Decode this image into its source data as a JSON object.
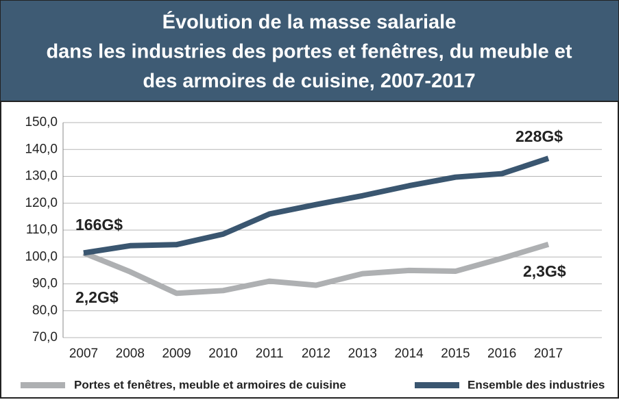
{
  "chart_data": {
    "type": "line",
    "title": [
      "Évolution de la masse salariale",
      "dans les industries des portes et fenêtres, du meuble et",
      "des armoires de cuisine, 2007-2017"
    ],
    "categories": [
      "2007",
      "2008",
      "2009",
      "2010",
      "2011",
      "2012",
      "2013",
      "2014",
      "2015",
      "2016",
      "2017"
    ],
    "series": [
      {
        "name": "Portes et fenêtres, meuble et armoires de cuisine",
        "color": "#aeb0b2",
        "values": [
          101.5,
          94.5,
          86.5,
          87.5,
          91,
          89.5,
          93.8,
          95,
          94.7,
          99.5,
          104.7
        ]
      },
      {
        "name": "Ensemble des industries",
        "color": "#3a5670",
        "values": [
          101.5,
          104.2,
          104.6,
          108.5,
          116,
          119.5,
          122.8,
          126.5,
          129.7,
          131,
          136.7
        ]
      }
    ],
    "annotations": [
      "166G$",
      "228G$",
      "2,2G$",
      "2,3G$"
    ],
    "ylim": [
      70,
      150
    ],
    "yticks": [
      {
        "value": 70,
        "label": "70,0"
      },
      {
        "value": 80,
        "label": "80,0"
      },
      {
        "value": 90,
        "label": "90,0"
      },
      {
        "value": 100,
        "label": "100,0"
      },
      {
        "value": 110,
        "label": "110,0"
      },
      {
        "value": 120,
        "label": "120,0"
      },
      {
        "value": 130,
        "label": "130,0"
      },
      {
        "value": 140,
        "label": "140,0"
      },
      {
        "value": 150,
        "label": "150,0"
      }
    ],
    "grid": true
  }
}
